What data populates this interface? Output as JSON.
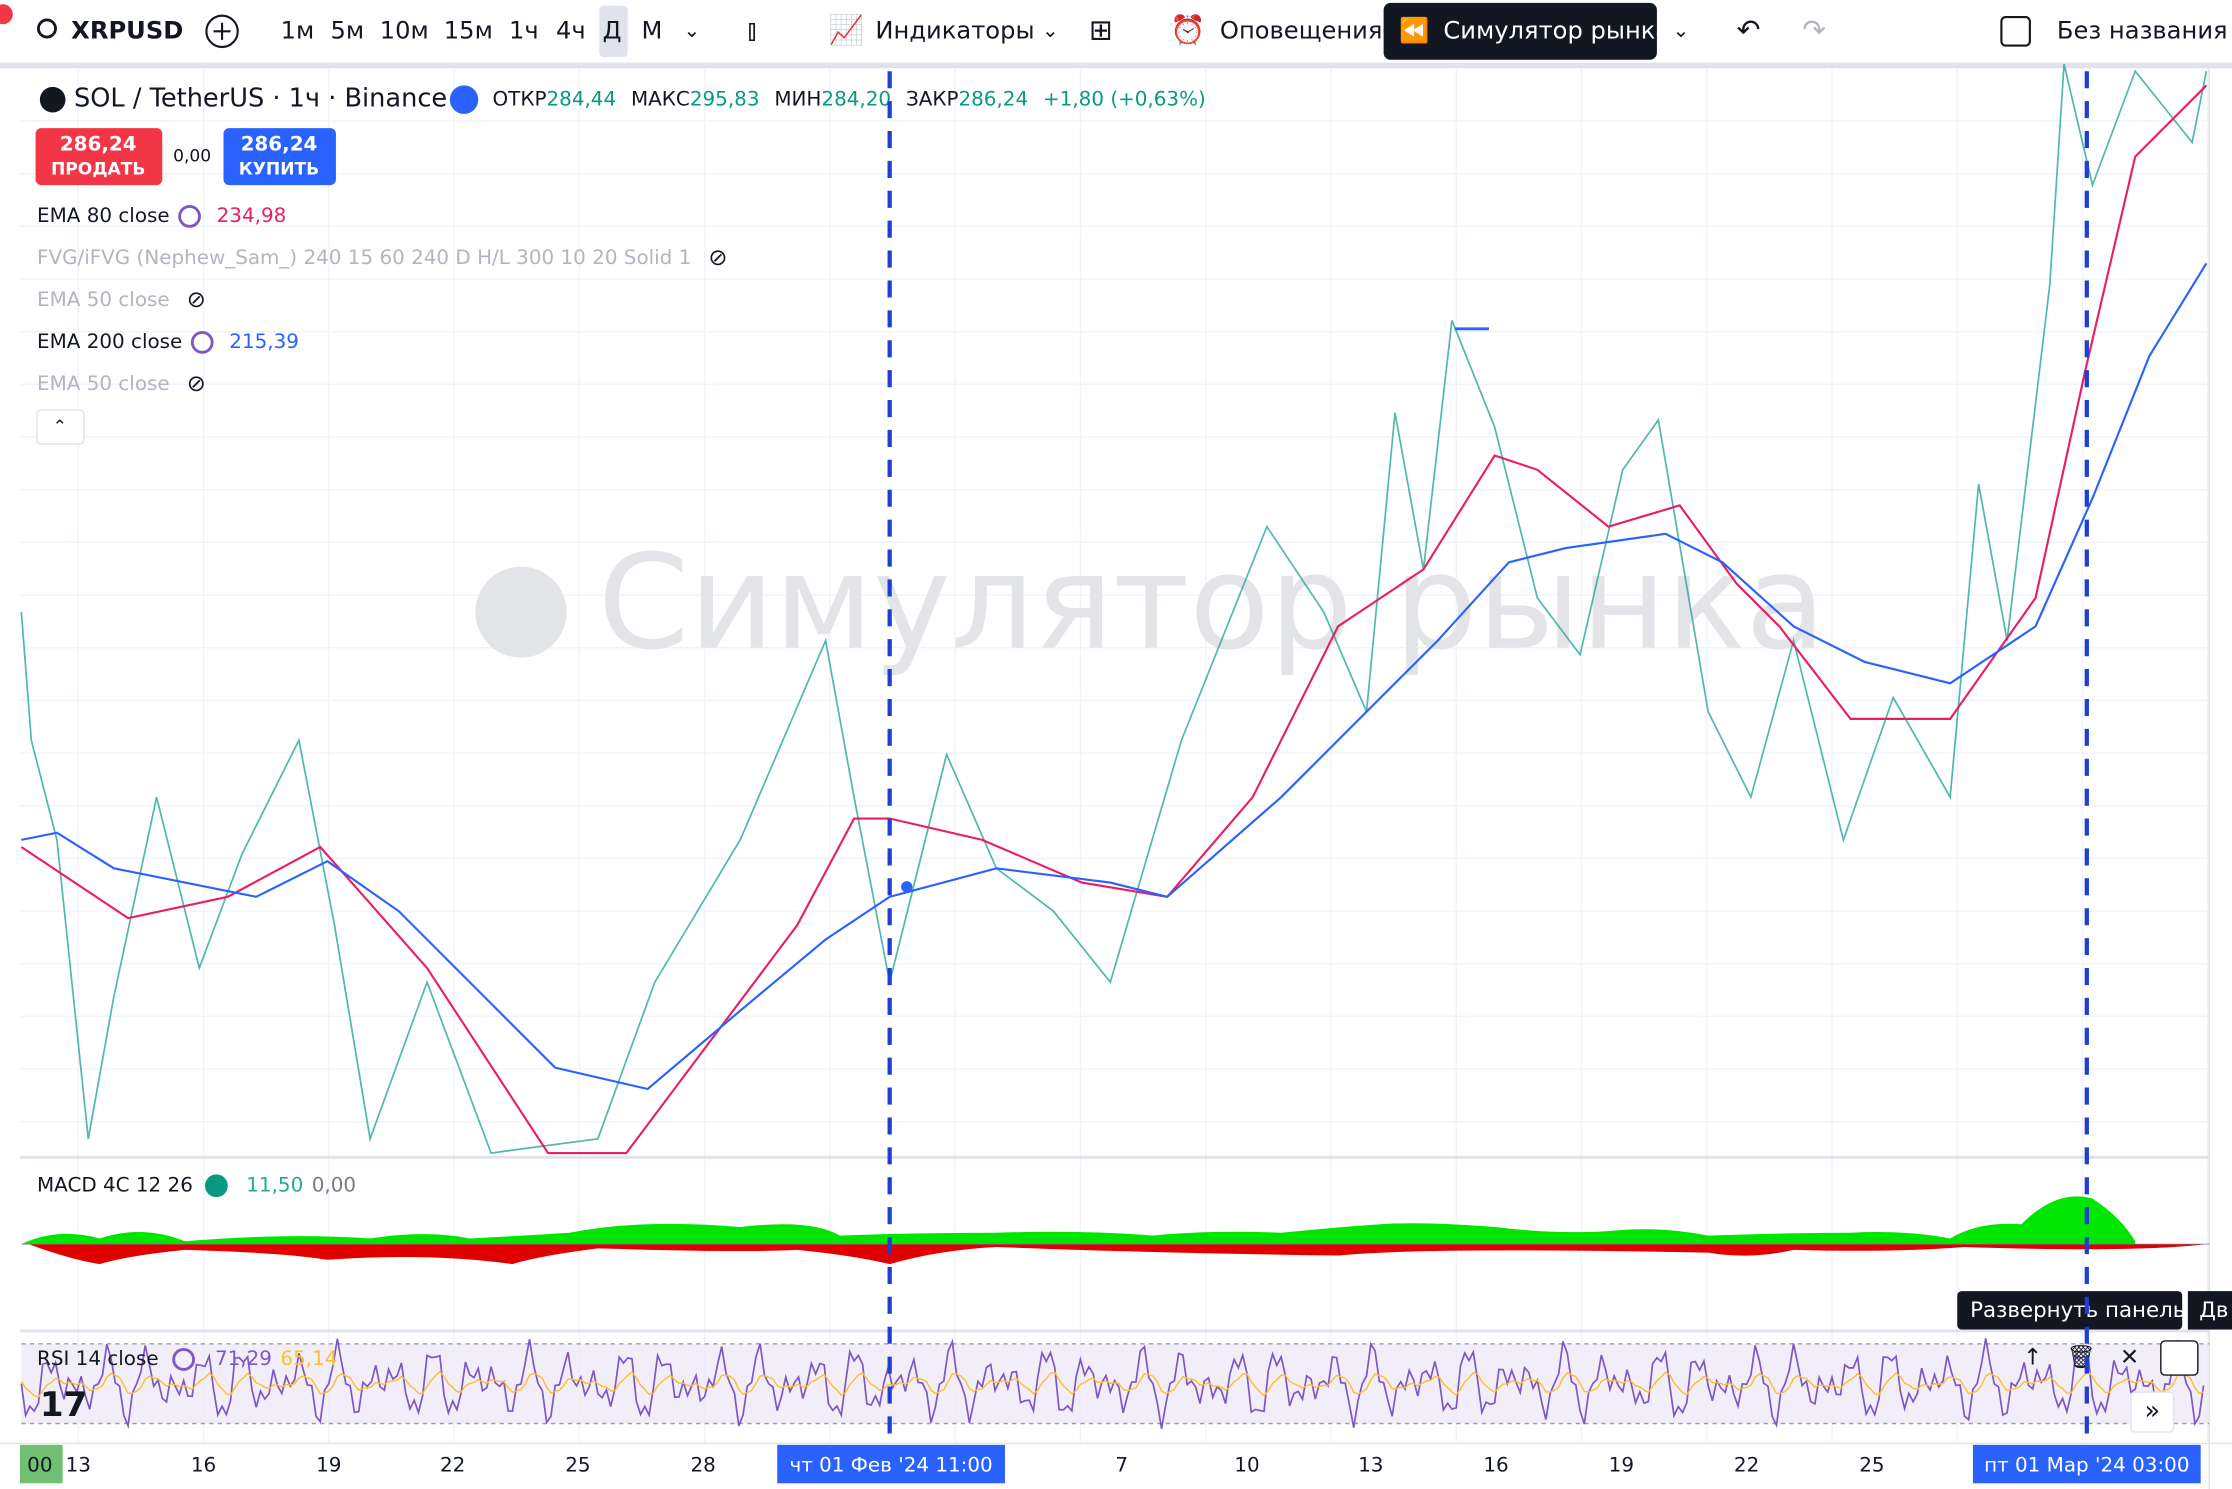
{
  "toolbar": {
    "symbol": "XRPUSD",
    "intervals": [
      "1м",
      "5м",
      "10м",
      "15м",
      "1ч",
      "4ч",
      "Д",
      "М"
    ],
    "indicators": "Индикаторы",
    "alerts": "Оповещения",
    "replay": "Симулятор рынка",
    "layout_name": "Без названия"
  },
  "legend": {
    "symbol": "SOL / TetherUS · 1ч · Binance",
    "open_label": "ОТКР",
    "open": "284,44",
    "high_label": "МАКС",
    "high": "295,83",
    "low_label": "МИН",
    "low": "284,20",
    "close_label": "ЗАКР",
    "close": "286,24",
    "change": "+1,80 (+0,63%)"
  },
  "trade": {
    "sell_price": "286,24",
    "sell": "ПРОДАТЬ",
    "spread": "0,00",
    "buy_price": "286,24",
    "buy": "КУПИТЬ"
  },
  "indicators": [
    {
      "name": "EMA 80 close",
      "value": "234,98"
    },
    {
      "name": "FVG/iFVG (Nephew_Sam_) 240 15 60 240 D H/L 300 10 20 Solid 1"
    },
    {
      "name": "EMA 50 close"
    },
    {
      "name": "EMA 200 close",
      "value": "215,39"
    },
    {
      "name": "EMA 50 close"
    }
  ],
  "watermark": "Симулятор рынка",
  "macd": {
    "name": "MACD 4C 12 26",
    "values": [
      "11,50",
      "0,00"
    ]
  },
  "rsi": {
    "name": "RSI 14 close",
    "values": [
      "71,29",
      "65,14"
    ]
  },
  "tooltip": "Развернуть панель",
  "tooltip_next": "Дв",
  "x_axis": {
    "labels": [
      "00",
      "13",
      "16",
      "19",
      "22",
      "25",
      "28",
      "7",
      "10",
      "13",
      "16",
      "19",
      "22",
      "25"
    ],
    "markers": [
      "чт 01 Фев '24  11:00",
      "пт 01 Мар '24  03:00"
    ]
  }
}
